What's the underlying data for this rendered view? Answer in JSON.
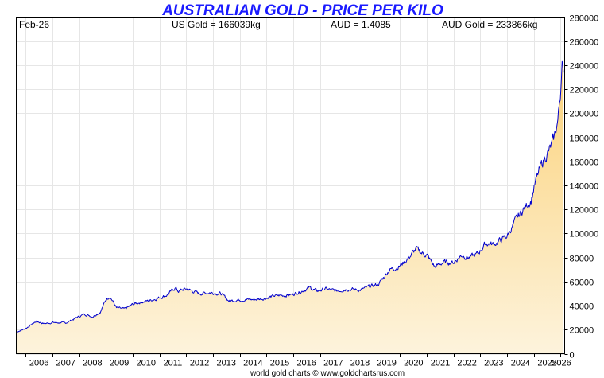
{
  "chart_data": {
    "type": "area",
    "title": "AUSTRALIAN GOLD - PRICE PER KILO",
    "header": {
      "date": "Feb-26",
      "us_gold": "US Gold = 166039kg",
      "aud_rate": "AUD = 1.4085",
      "aud_gold": "AUD Gold = 233866kg"
    },
    "credit": "world gold charts © www.goldchartsrus.com",
    "xlabel": "",
    "ylabel": "",
    "x_range": [
      2005.65,
      2026.15
    ],
    "ylim": [
      0,
      280000
    ],
    "yticks": [
      0,
      20000,
      40000,
      60000,
      80000,
      100000,
      120000,
      140000,
      160000,
      180000,
      200000,
      220000,
      240000,
      260000,
      280000
    ],
    "xtick_labels": [
      "2006",
      "2007",
      "2008",
      "2009",
      "2010",
      "2011",
      "2012",
      "2013",
      "2014",
      "2015",
      "2016",
      "2017",
      "2018",
      "2019",
      "2020",
      "2021",
      "2022",
      "2023",
      "2024",
      "2025",
      "2026"
    ],
    "y_axis_side": "right",
    "grid": true,
    "colors": {
      "line": "#0000cc",
      "fill_top": "#fbd27a",
      "fill_bottom": "#fdf3dc",
      "title": "#1a1aff"
    },
    "series": [
      {
        "x": [
          2005.65,
          2006.0,
          2006.4,
          2006.7,
          2007.0,
          2007.5,
          2007.9,
          2008.2,
          2008.5,
          2008.8,
          2009.0,
          2009.15,
          2009.4,
          2009.7,
          2010.0,
          2010.3,
          2010.6,
          2010.9,
          2011.3,
          2011.6,
          2011.7,
          2012.0,
          2012.5,
          2012.9,
          2013.3,
          2013.6,
          2014.0,
          2014.5,
          2014.9,
          2015.3,
          2015.9,
          2016.3,
          2016.6,
          2016.9,
          2017.2,
          2017.6,
          2018.0,
          2018.5,
          2018.9,
          2019.2,
          2019.6,
          2019.9,
          2020.2,
          2020.6,
          2020.8,
          2021.0,
          2021.3,
          2021.6,
          2022.0,
          2022.3,
          2022.6,
          2022.9,
          2023.2,
          2023.5,
          2023.8,
          2024.0,
          2024.3,
          2024.6,
          2024.9,
          2025.0,
          2025.2,
          2025.4,
          2025.6,
          2025.75,
          2025.9,
          2026.0,
          2026.05,
          2026.1
        ],
        "y": [
          18000,
          21000,
          27000,
          25000,
          26000,
          25500,
          30000,
          33000,
          31000,
          35000,
          45000,
          48000,
          38000,
          37000,
          41000,
          43000,
          44000,
          46000,
          49000,
          55000,
          52000,
          54000,
          50000,
          51000,
          50000,
          44000,
          45000,
          45000,
          46000,
          48000,
          49000,
          52000,
          55000,
          52000,
          54000,
          52000,
          54000,
          53000,
          56000,
          58000,
          70000,
          72000,
          77000,
          87000,
          84000,
          82000,
          72000,
          76000,
          76000,
          82000,
          80000,
          83000,
          92000,
          91000,
          95000,
          98000,
          110000,
          120000,
          128000,
          138000,
          152000,
          163000,
          170000,
          178000,
          195000,
          218000,
          248000,
          233866
        ]
      }
    ]
  }
}
